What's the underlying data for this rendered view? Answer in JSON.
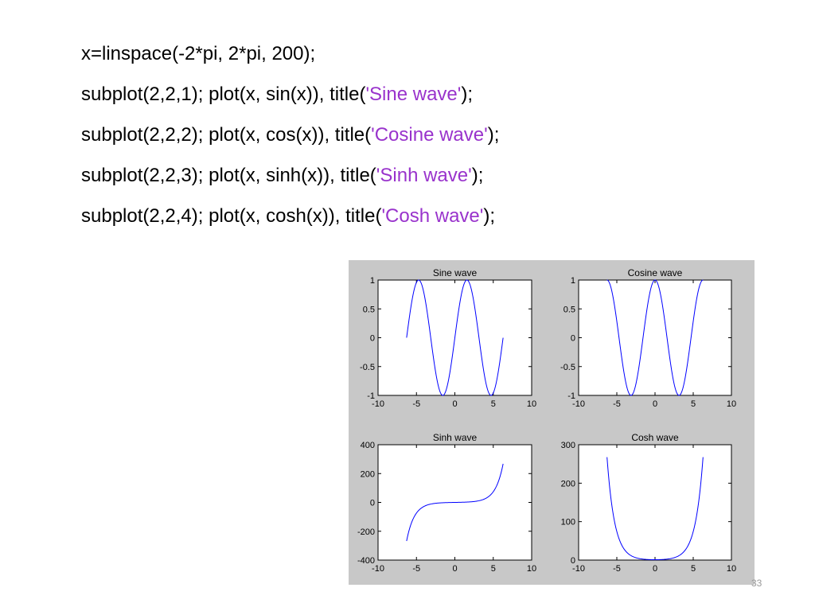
{
  "code": {
    "lines": [
      {
        "parts": [
          {
            "text": "x=linspace(-2*pi, 2*pi, 200);",
            "string": false
          }
        ]
      },
      {
        "parts": [
          {
            "text": "subplot(2,2,1); plot(x, sin(x)), title(",
            "string": false
          },
          {
            "text": "'Sine wave'",
            "string": true
          },
          {
            "text": ");",
            "string": false
          }
        ]
      },
      {
        "parts": [
          {
            "text": "subplot(2,2,2); plot(x, cos(x)), title(",
            "string": false
          },
          {
            "text": "'Cosine wave'",
            "string": true
          },
          {
            "text": ");",
            "string": false
          }
        ]
      },
      {
        "parts": [
          {
            "text": "subplot(2,2,3); plot(x, sinh(x)), title(",
            "string": false
          },
          {
            "text": "'Sinh wave'",
            "string": true
          },
          {
            "text": ");",
            "string": false
          }
        ]
      },
      {
        "parts": [
          {
            "text": "subplot(2,2,4); plot(x, cosh(x)), title(",
            "string": false
          },
          {
            "text": "'Cosh wave'",
            "string": true
          },
          {
            "text": ");",
            "string": false
          }
        ]
      }
    ]
  },
  "colors": {
    "string_literal": "#9933cc",
    "line": "#0000ff",
    "figure_background": "#c8c8c8",
    "axes_background": "#ffffff"
  },
  "page_number": "33",
  "chart_data": [
    {
      "type": "line",
      "title": "Sine wave",
      "function": "sin",
      "xlim": [
        -10,
        10
      ],
      "ylim": [
        -1,
        1
      ],
      "xticks": [
        "-10",
        "-5",
        "0",
        "5",
        "10"
      ],
      "yticks": [
        "-1",
        "-0.5",
        "0",
        "0.5",
        "1"
      ],
      "x_range": [
        -6.283,
        6.283
      ],
      "points": 200,
      "grid": false
    },
    {
      "type": "line",
      "title": "Cosine wave",
      "function": "cos",
      "xlim": [
        -10,
        10
      ],
      "ylim": [
        -1,
        1
      ],
      "xticks": [
        "-10",
        "-5",
        "0",
        "5",
        "10"
      ],
      "yticks": [
        "-1",
        "-0.5",
        "0",
        "0.5",
        "1"
      ],
      "x_range": [
        -6.283,
        6.283
      ],
      "points": 200,
      "grid": false
    },
    {
      "type": "line",
      "title": "Sinh wave",
      "function": "sinh",
      "xlim": [
        -10,
        10
      ],
      "ylim": [
        -400,
        400
      ],
      "xticks": [
        "-10",
        "-5",
        "0",
        "5",
        "10"
      ],
      "yticks": [
        "-400",
        "-200",
        "0",
        "200",
        "400"
      ],
      "x_range": [
        -6.283,
        6.283
      ],
      "points": 200,
      "grid": false
    },
    {
      "type": "line",
      "title": "Cosh wave",
      "function": "cosh",
      "xlim": [
        -10,
        10
      ],
      "ylim": [
        0,
        300
      ],
      "xticks": [
        "-10",
        "-5",
        "0",
        "5",
        "10"
      ],
      "yticks": [
        "0",
        "100",
        "200",
        "300"
      ],
      "x_range": [
        -6.283,
        6.283
      ],
      "points": 200,
      "grid": false
    }
  ]
}
